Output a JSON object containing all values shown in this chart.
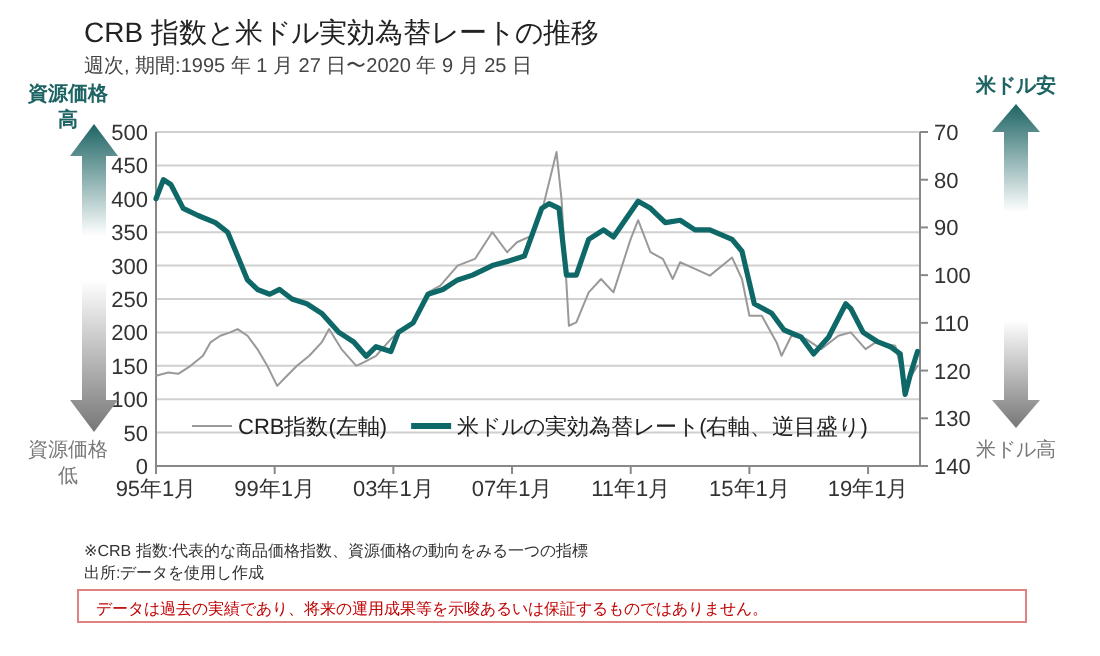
{
  "chart_data": {
    "type": "line",
    "title": "CRB 指数と米ドル実効為替レートの推移",
    "subtitle": "週次, 期間:1995 年 1 月 27 日〜2020 年 9 月 25 日",
    "xlim": [
      "1995-01",
      "2020-10"
    ],
    "xticks": [
      {
        "value": "1995-01",
        "label": "95年1月"
      },
      {
        "value": "1999-01",
        "label": "99年1月"
      },
      {
        "value": "2003-01",
        "label": "03年1月"
      },
      {
        "value": "2007-01",
        "label": "07年1月"
      },
      {
        "value": "2011-01",
        "label": "11年1月"
      },
      {
        "value": "2015-01",
        "label": "15年1月"
      },
      {
        "value": "2019-01",
        "label": "19年1月"
      }
    ],
    "ylim": [
      0,
      500
    ],
    "yticks": [
      0,
      50,
      100,
      150,
      200,
      250,
      300,
      350,
      400,
      450,
      500
    ],
    "y2lim": [
      140,
      70
    ],
    "y2ticks": [
      70,
      80,
      90,
      100,
      110,
      120,
      130,
      140
    ],
    "grid": "y",
    "legend": "bottom",
    "line_style": "solid",
    "marker": "none",
    "series": [
      {
        "name": "CRB指数(左軸)",
        "color": "#999999",
        "x": [
          "1995-01",
          "1995-06",
          "1995-10",
          "1996-03",
          "1996-08",
          "1996-11",
          "1997-03",
          "1997-07",
          "1997-10",
          "1998-02",
          "1998-06",
          "1998-10",
          "1999-02",
          "1999-06",
          "1999-10",
          "2000-03",
          "2000-08",
          "2000-11",
          "2001-04",
          "2001-10",
          "2002-01",
          "2002-06",
          "2002-12",
          "2003-03",
          "2003-09",
          "2004-03",
          "2004-08",
          "2005-03",
          "2005-10",
          "2006-05",
          "2006-11",
          "2007-03",
          "2007-09",
          "2008-01",
          "2008-07",
          "2008-09",
          "2008-12",
          "2009-03",
          "2009-08",
          "2010-01",
          "2010-06",
          "2011-01",
          "2011-04",
          "2011-09",
          "2012-02",
          "2012-06",
          "2012-09",
          "2013-03",
          "2013-09",
          "2014-06",
          "2014-10",
          "2015-01",
          "2015-06",
          "2015-12",
          "2016-02",
          "2016-06",
          "2016-12",
          "2017-06",
          "2018-01",
          "2018-06",
          "2018-12",
          "2019-04",
          "2019-12",
          "2020-04",
          "2020-09"
        ],
        "values": [
          135,
          140,
          138,
          150,
          165,
          185,
          195,
          200,
          205,
          195,
          175,
          150,
          120,
          135,
          150,
          165,
          185,
          205,
          175,
          150,
          155,
          165,
          190,
          200,
          215,
          260,
          270,
          300,
          310,
          350,
          320,
          335,
          345,
          380,
          470,
          400,
          210,
          215,
          260,
          280,
          260,
          340,
          368,
          320,
          310,
          280,
          305,
          295,
          285,
          312,
          280,
          225,
          225,
          185,
          165,
          195,
          190,
          175,
          195,
          200,
          175,
          185,
          180,
          120,
          150
        ]
      },
      {
        "name": "米ドルの実効為替レート(右軸、逆目盛り)",
        "color": "#0e6868",
        "axis": "y2",
        "x": [
          "1995-01",
          "1995-04",
          "1995-07",
          "1995-12",
          "1996-06",
          "1997-01",
          "1997-06",
          "1997-10",
          "1998-02",
          "1998-06",
          "1998-11",
          "1999-03",
          "1999-08",
          "2000-02",
          "2000-08",
          "2001-03",
          "2001-09",
          "2002-02",
          "2002-06",
          "2002-12",
          "2003-03",
          "2003-09",
          "2004-03",
          "2004-09",
          "2005-03",
          "2005-09",
          "2006-05",
          "2006-12",
          "2007-06",
          "2008-01",
          "2008-04",
          "2008-08",
          "2008-11",
          "2009-03",
          "2009-08",
          "2010-02",
          "2010-06",
          "2011-04",
          "2011-09",
          "2012-03",
          "2012-09",
          "2013-03",
          "2013-09",
          "2014-06",
          "2014-10",
          "2015-03",
          "2015-10",
          "2016-03",
          "2016-10",
          "2017-03",
          "2017-09",
          "2018-04",
          "2018-06",
          "2018-11",
          "2019-05",
          "2019-10",
          "2020-02",
          "2020-04",
          "2020-06",
          "2020-09"
        ],
        "values": [
          84,
          80,
          81,
          86,
          87.5,
          89,
          91,
          96,
          101,
          103,
          104,
          103,
          105,
          106,
          108,
          112,
          114,
          117,
          115,
          116,
          112,
          110,
          104,
          103,
          101,
          100,
          98,
          97,
          96,
          86,
          85,
          86,
          100,
          100,
          92.5,
          90.5,
          92,
          84.5,
          86,
          89,
          88.5,
          90.5,
          90.5,
          92.5,
          95,
          106,
          108,
          111.5,
          113,
          116.5,
          113,
          106,
          107,
          112,
          114,
          115,
          116.5,
          125,
          121,
          116
        ]
      }
    ],
    "annotations": [
      "資源価格",
      "高",
      "資源価格",
      "低",
      "米ドル安",
      "米ドル高",
      "※CRB 指数:代表的な商品価格指数、資源価格の動向をみる一つの指標",
      "出所:データを使用し作成",
      "データは過去の実績であり、将来の運用成果等を示唆あるいは保証するものではありません。"
    ]
  }
}
